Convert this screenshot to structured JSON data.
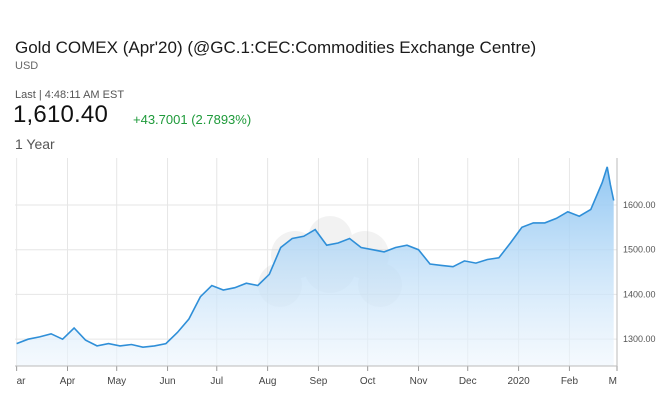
{
  "header": {
    "title": "Gold COMEX (Apr'20) (@GC.1:CEC:Commodities Exchange Centre)",
    "currency": "USD",
    "last_label": "Last | 4:48:11 AM EST",
    "price": "1,610.40",
    "change": "+43.7001 (2.7893%)",
    "range_label": "1 Year"
  },
  "colors": {
    "line": "#2f8fd8",
    "fill_top": "#8cc4f2",
    "fill_bottom": "#eef6fd",
    "change_positive": "#1e9a3a",
    "grid": "#e6e6e6"
  },
  "chart_data": {
    "type": "area",
    "title": "",
    "xlabel": "",
    "ylabel": "",
    "ylim": [
      1240,
      1705
    ],
    "yticks": [
      1300,
      1400,
      1500,
      1600
    ],
    "ytick_labels": [
      "1300.00",
      "1400.00",
      "1500.00",
      "1600.00"
    ],
    "grid": true,
    "x_tick_labels": [
      "ar",
      "Apr",
      "May",
      "Jun",
      "Jul",
      "Aug",
      "Sep",
      "Oct",
      "Nov",
      "Dec",
      "2020",
      "Feb",
      "M"
    ],
    "x": [
      "2019-03-01",
      "2019-03-08",
      "2019-03-15",
      "2019-03-22",
      "2019-03-29",
      "2019-04-05",
      "2019-04-12",
      "2019-04-19",
      "2019-04-26",
      "2019-05-03",
      "2019-05-10",
      "2019-05-17",
      "2019-05-24",
      "2019-05-31",
      "2019-06-07",
      "2019-06-14",
      "2019-06-21",
      "2019-06-28",
      "2019-07-05",
      "2019-07-12",
      "2019-07-19",
      "2019-07-26",
      "2019-08-02",
      "2019-08-09",
      "2019-08-16",
      "2019-08-23",
      "2019-08-30",
      "2019-09-06",
      "2019-09-13",
      "2019-09-20",
      "2019-09-27",
      "2019-10-04",
      "2019-10-11",
      "2019-10-18",
      "2019-10-25",
      "2019-11-01",
      "2019-11-08",
      "2019-11-15",
      "2019-11-22",
      "2019-11-29",
      "2019-12-06",
      "2019-12-13",
      "2019-12-20",
      "2019-12-27",
      "2020-01-03",
      "2020-01-10",
      "2020-01-17",
      "2020-01-24",
      "2020-01-31",
      "2020-02-07",
      "2020-02-14",
      "2020-02-21",
      "2020-02-24",
      "2020-02-26",
      "2020-02-28"
    ],
    "series": [
      {
        "values": [
          1290,
          1300,
          1305,
          1312,
          1300,
          1325,
          1298,
          1285,
          1290,
          1285,
          1288,
          1282,
          1285,
          1290,
          1315,
          1345,
          1395,
          1420,
          1410,
          1415,
          1425,
          1420,
          1445,
          1505,
          1525,
          1530,
          1545,
          1510,
          1515,
          1525,
          1505,
          1500,
          1495,
          1505,
          1510,
          1500,
          1468,
          1465,
          1462,
          1475,
          1470,
          1478,
          1482,
          1515,
          1550,
          1560,
          1560,
          1570,
          1585,
          1575,
          1590,
          1650,
          1685,
          1645,
          1610
        ]
      }
    ]
  }
}
